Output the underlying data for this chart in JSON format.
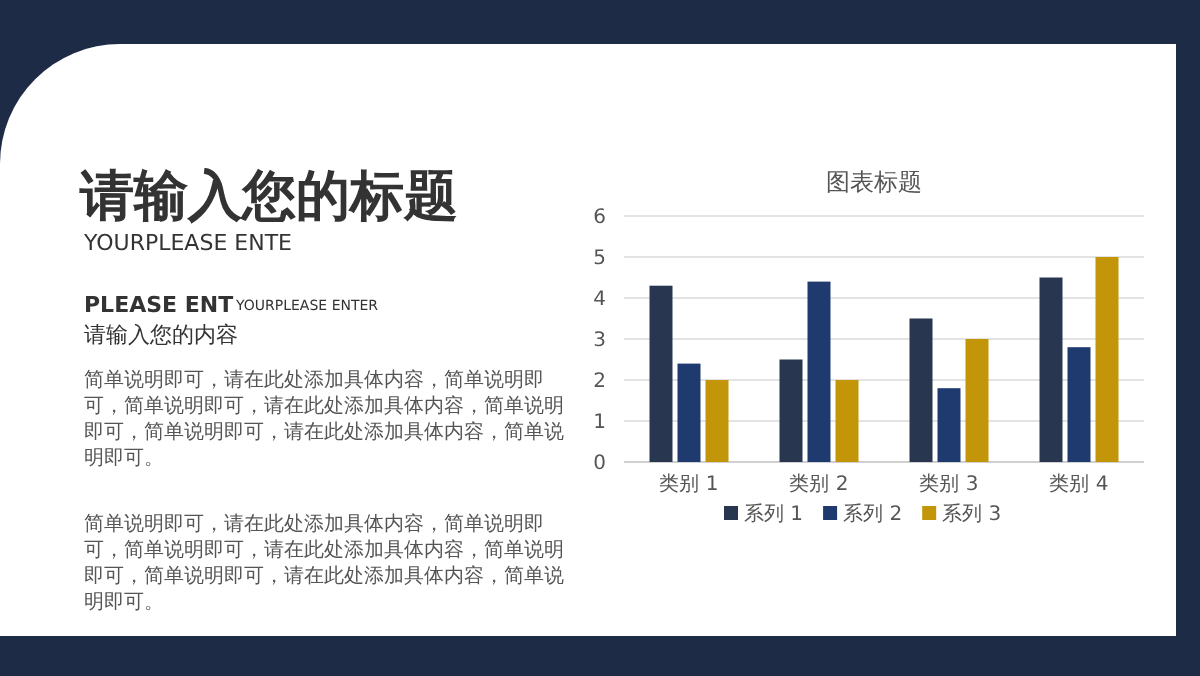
{
  "chart_data": {
    "type": "bar",
    "title": "图表标题",
    "categories": [
      "类别 1",
      "类别 2",
      "类别 3",
      "类别 4"
    ],
    "series": [
      {
        "name": "系列 1",
        "color": "#283650",
        "values": [
          4.3,
          2.5,
          3.5,
          4.5
        ]
      },
      {
        "name": "系列 2",
        "color": "#1f3a6e",
        "values": [
          2.4,
          4.4,
          1.8,
          2.8
        ]
      },
      {
        "name": "系列 3",
        "color": "#c3960a",
        "values": [
          2,
          2,
          3,
          5
        ]
      }
    ],
    "ylim": [
      0,
      6
    ],
    "yticks": [
      0,
      1,
      2,
      3,
      4,
      5,
      6
    ],
    "grid": "y",
    "legend": "bottom",
    "annotations": [
      "请输入您的标题",
      "YOURPLEASE ENTE",
      "PLEASE ENT",
      "YOURPLEASE ENTER",
      "请输入您的内容",
      "简单说明即可，请在此处添加具体内容，简单说明即可，简单说明即可，请在此处添加具体内容，简单说明即可，简单说明即可，请在此处添加具体内容，简单说明即可。",
      "简单说明即可，请在此处添加具体内容，简单说明即可，简单说明即可，请在此处添加具体内容，简单说明即可，简单说明即可，请在此处添加具体内容，简单说明即可。"
    ]
  }
}
